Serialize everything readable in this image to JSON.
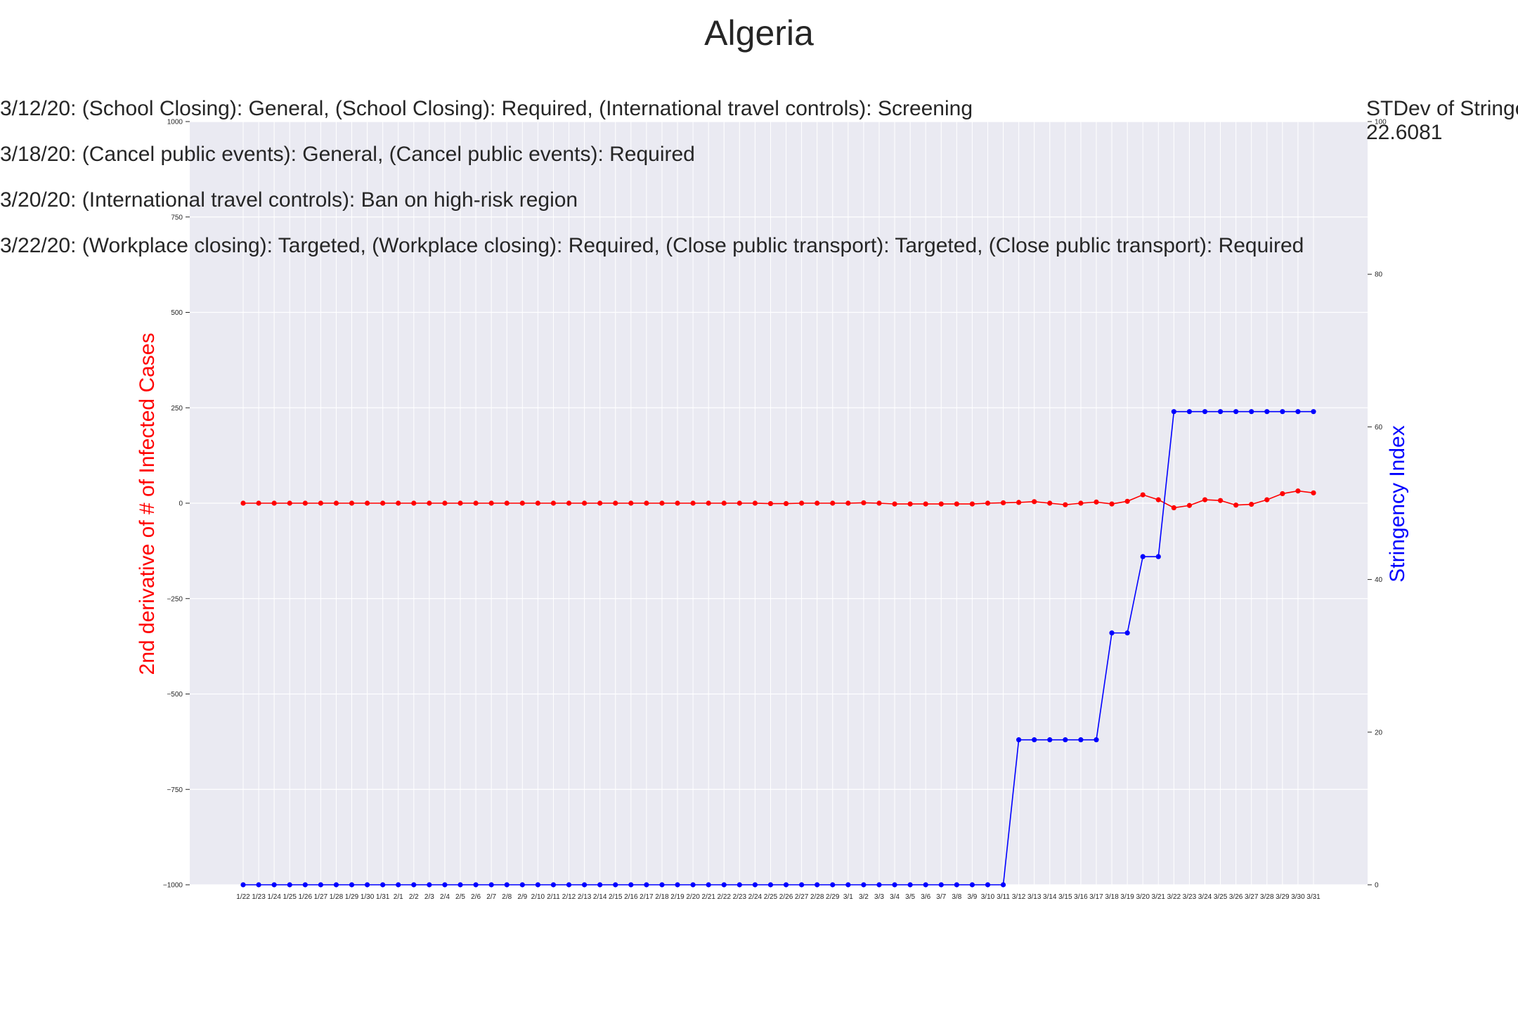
{
  "chart_data": {
    "type": "line",
    "title": "Algeria",
    "annotations": [
      "3/12/20: (School Closing): General, (School Closing): Required, (International travel controls): Screening",
      "3/18/20: (Cancel public events): General, (Cancel public events): Required",
      "3/20/20: (International travel controls): Ban on high-risk region",
      "3/22/20: (Workplace closing): Targeted, (Workplace closing): Required, (Close public transport): Targeted, (Close public transport): Required"
    ],
    "stdev_label": "STDev of Stringency Index:",
    "stdev_value": "22.6081",
    "y_left_label": "2nd derivative of # of Infected Cases",
    "y_right_label": "Stringency Index",
    "y_left_lim": [
      -1000,
      1000
    ],
    "y_left_ticks": [
      "1000",
      "750",
      "500",
      "250",
      "0",
      "−250",
      "−500",
      "−750",
      "−1000"
    ],
    "y_right_lim": [
      0,
      100
    ],
    "y_right_ticks": [
      "100",
      "80",
      "60",
      "40",
      "20",
      "0"
    ],
    "grid": true,
    "x": [
      "1/22",
      "1/23",
      "1/24",
      "1/25",
      "1/26",
      "1/27",
      "1/28",
      "1/29",
      "1/30",
      "1/31",
      "2/1",
      "2/2",
      "2/3",
      "2/4",
      "2/5",
      "2/6",
      "2/7",
      "2/8",
      "2/9",
      "2/10",
      "2/11",
      "2/12",
      "2/13",
      "2/14",
      "2/15",
      "2/16",
      "2/17",
      "2/18",
      "2/19",
      "2/20",
      "2/21",
      "2/22",
      "2/23",
      "2/24",
      "2/25",
      "2/26",
      "2/27",
      "2/28",
      "2/29",
      "3/1",
      "3/2",
      "3/3",
      "3/4",
      "3/5",
      "3/6",
      "3/7",
      "3/8",
      "3/9",
      "3/10",
      "3/11",
      "3/12",
      "3/13",
      "3/14",
      "3/15",
      "3/16",
      "3/17",
      "3/18",
      "3/19",
      "3/20",
      "3/21",
      "3/22",
      "3/23",
      "3/24",
      "3/25",
      "3/26",
      "3/27",
      "3/28",
      "3/29",
      "3/30",
      "3/31"
    ],
    "series": [
      {
        "axis": "left",
        "color": "#ff0000",
        "values": [
          0,
          0,
          0,
          0,
          0,
          0,
          0,
          0,
          0,
          0,
          0,
          0,
          0,
          0,
          0,
          0,
          0,
          0,
          0,
          0,
          0,
          0,
          0,
          0,
          0,
          0,
          0,
          0,
          0,
          0,
          0,
          0,
          0,
          0,
          -1,
          -1,
          0,
          0,
          0,
          0,
          1,
          0,
          -2,
          -2,
          -2,
          -2,
          -2,
          -2,
          0,
          1,
          2,
          4,
          0,
          -4,
          0,
          3,
          -2,
          5,
          22,
          9,
          -12,
          -6,
          9,
          7,
          -5,
          -3,
          9,
          25,
          32,
          27
        ]
      },
      {
        "axis": "right",
        "color": "#0000ff",
        "values": [
          0,
          0,
          0,
          0,
          0,
          0,
          0,
          0,
          0,
          0,
          0,
          0,
          0,
          0,
          0,
          0,
          0,
          0,
          0,
          0,
          0,
          0,
          0,
          0,
          0,
          0,
          0,
          0,
          0,
          0,
          0,
          0,
          0,
          0,
          0,
          0,
          0,
          0,
          0,
          0,
          0,
          0,
          0,
          0,
          0,
          0,
          0,
          0,
          0,
          0,
          19,
          19,
          19,
          19,
          19,
          19,
          33,
          33,
          43,
          43,
          62,
          62,
          62,
          62,
          62,
          62,
          62,
          62,
          62,
          62
        ]
      }
    ]
  }
}
